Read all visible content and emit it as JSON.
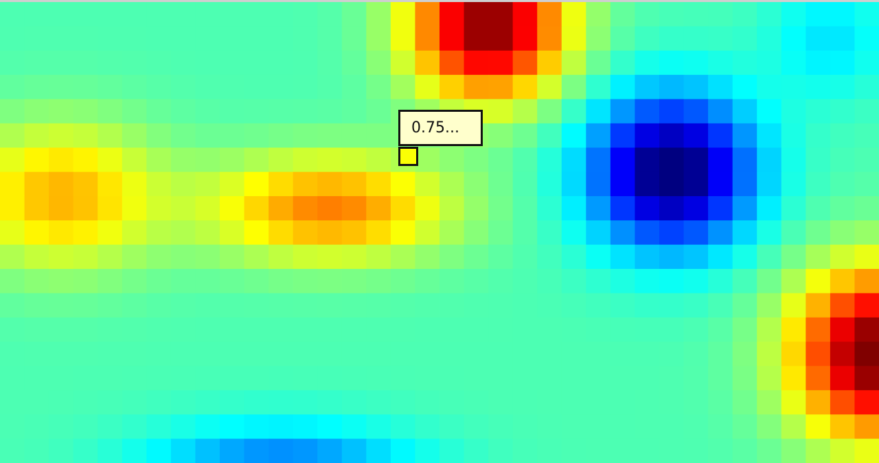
{
  "chart_data": {
    "type": "heatmap",
    "colormap": "jet",
    "rows": 19,
    "cols": 36,
    "grid": false,
    "legend": "none",
    "hover": {
      "row": 6,
      "col": 16,
      "tooltip": "0.75..."
    }
  },
  "tooltip": {
    "text": "0.75..."
  }
}
